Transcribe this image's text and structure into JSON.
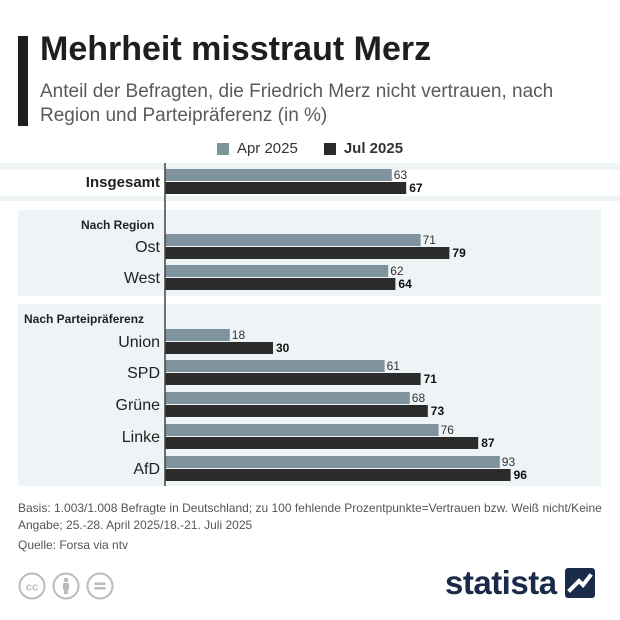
{
  "header": {
    "title": "Mehrheit misstraut Merz",
    "subtitle": "Anteil der Befragten, die Friedrich Merz nicht vertrauen, nach Region und Parteipräferenz (in %)"
  },
  "colors": {
    "series_apr": "#7f939e",
    "series_jul": "#2b2b2b",
    "panel_bg": "#eef3f6",
    "title_bar": "#1e1e1e",
    "brand": "#1a2b4a"
  },
  "chart_data": {
    "type": "bar",
    "orientation": "horizontal",
    "series": [
      {
        "name": "Apr 2025",
        "values": [
          63,
          71,
          62,
          18,
          61,
          68,
          76,
          93
        ]
      },
      {
        "name": "Jul 2025",
        "values": [
          67,
          79,
          64,
          30,
          71,
          73,
          87,
          96
        ]
      }
    ],
    "categories": [
      "Insgesamt",
      "Ost",
      "West",
      "Union",
      "SPD",
      "Grüne",
      "Linke",
      "AfD"
    ],
    "groups": [
      {
        "label": "",
        "categories": [
          "Insgesamt"
        ]
      },
      {
        "label": "Nach Region",
        "categories": [
          "Ost",
          "West"
        ]
      },
      {
        "label": "Nach Parteipräferenz",
        "categories": [
          "Union",
          "SPD",
          "Grüne",
          "Linke",
          "AfD"
        ]
      }
    ],
    "xlim": [
      0,
      100
    ],
    "legend_position": "top-center",
    "grid": false
  },
  "footer": {
    "note": "Basis: 1.003/1.008 Befragte in Deutschland; zu 100 fehlende Prozentpunkte=Vertrauen bzw. Weiß nicht/Keine Angabe; 25.-28. April 2025/18.-21. Juli 2025",
    "source": "Quelle: Forsa via ntv",
    "brand": "statista",
    "icons": [
      "cc-icon",
      "by-icon",
      "nd-icon"
    ]
  }
}
